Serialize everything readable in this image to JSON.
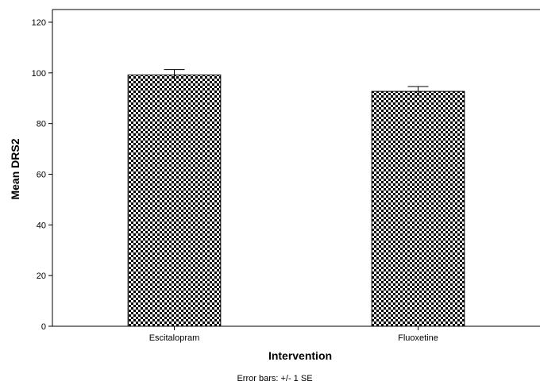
{
  "chart_data": {
    "type": "bar",
    "title": "",
    "xlabel": "Intervention",
    "ylabel": "Mean DRS2",
    "categories": [
      "Escitalopram",
      "Fluoxetine"
    ],
    "values": [
      99.2,
      92.7
    ],
    "error_bars": {
      "type": "+/- 1 SE",
      "upper": [
        101.3,
        94.6
      ],
      "lower": [
        97.1,
        90.8
      ]
    },
    "ylim": [
      0,
      125
    ],
    "yticks": [
      0,
      20,
      40,
      60,
      80,
      100,
      120
    ],
    "grid": false,
    "legend": "none",
    "bar_fill": "checkerboard",
    "note": "Error bars: +/- 1 SE"
  },
  "colors": {
    "bar_dark": "#000000",
    "bar_light": "#ffffff",
    "axis": "#000000",
    "background": "#ffffff"
  }
}
